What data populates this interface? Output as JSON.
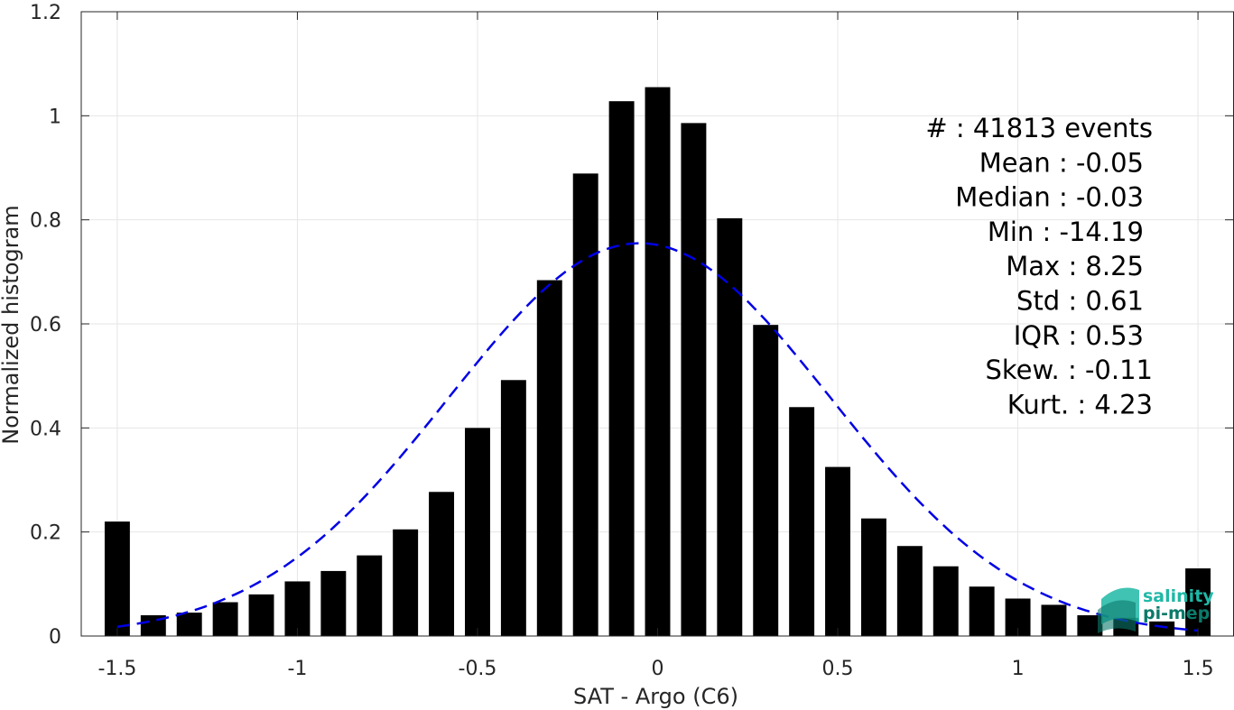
{
  "chart_data": {
    "type": "bar",
    "xlabel": "SAT - Argo (C6)",
    "ylabel": "Normalized histogram",
    "xlim": [
      -1.6,
      1.6
    ],
    "ylim": [
      0,
      1.2
    ],
    "x_ticks": [
      -1.5,
      -1,
      -0.5,
      0,
      0.5,
      1,
      1.5
    ],
    "x_tick_labels": [
      "-1.5",
      "-1",
      "-0.5",
      "0",
      "0.5",
      "1",
      "1.5"
    ],
    "y_ticks": [
      0,
      0.2,
      0.4,
      0.6,
      0.8,
      1,
      1.2
    ],
    "y_tick_labels": [
      "0",
      "0.2",
      "0.4",
      "0.6",
      "0.8",
      "1",
      "1.2"
    ],
    "grid": true,
    "bar_color": "#000000",
    "bin_width": 0.1,
    "x": [
      -1.5,
      -1.4,
      -1.3,
      -1.2,
      -1.1,
      -1.0,
      -0.9,
      -0.8,
      -0.7,
      -0.6,
      -0.5,
      -0.4,
      -0.3,
      -0.2,
      -0.1,
      0.0,
      0.1,
      0.2,
      0.3,
      0.4,
      0.5,
      0.6,
      0.7,
      0.8,
      0.9,
      1.0,
      1.1,
      1.2,
      1.3,
      1.4,
      1.5
    ],
    "values": [
      0.22,
      0.04,
      0.045,
      0.065,
      0.08,
      0.105,
      0.125,
      0.155,
      0.205,
      0.277,
      0.4,
      0.492,
      0.684,
      0.889,
      1.028,
      1.055,
      0.986,
      0.803,
      0.598,
      0.44,
      0.325,
      0.226,
      0.173,
      0.134,
      0.095,
      0.072,
      0.06,
      0.04,
      0.035,
      0.028,
      0.13
    ],
    "fit_curve": {
      "style": "dashed",
      "color": "#0000e6",
      "type": "normal",
      "mean": -0.05,
      "std": 0.53,
      "peak": 0.755,
      "x_range": [
        -1.5,
        1.5
      ]
    },
    "stats": [
      "#  : 41813 events",
      "Mean : -0.05",
      "Median : -0.03",
      "Min : -14.19",
      "Max : 8.25",
      "Std : 0.61",
      "IQR : 0.53",
      "Skew. : -0.11",
      "Kurt. : 4.23"
    ]
  },
  "logo": {
    "line1": "salinity",
    "line2": "pi-mep",
    "color1": "#1fb8a6",
    "color2": "#0b7a6a"
  }
}
